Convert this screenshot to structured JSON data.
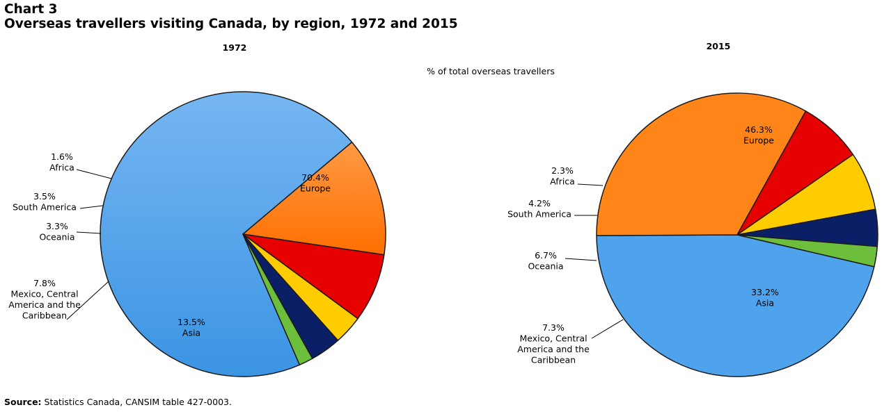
{
  "header": {
    "chart_number": "Chart 3",
    "title": "Overseas travellers visiting Canada, by region, 1972 and 2015"
  },
  "unit_label": "% of total overseas travellers",
  "source": {
    "label": "Source:",
    "text": "Statistics Canada, CANSIM table 427-0003."
  },
  "colors": {
    "Europe": "#4fa3ec",
    "Asia": "#ff8519",
    "Mexico, Central America and the Caribbean": "#e60000",
    "Oceania": "#ffcc00",
    "South America": "#0a1f66",
    "Africa": "#6dbe3c"
  },
  "chart_data": [
    {
      "type": "pie",
      "title": "1972",
      "slices": [
        {
          "label": "Europe",
          "value": 70.4,
          "value_label": "70.4%",
          "label_lines": [
            "Europe"
          ]
        },
        {
          "label": "Asia",
          "value": 13.5,
          "value_label": "13.5%",
          "label_lines": [
            "Asia"
          ]
        },
        {
          "label": "Mexico, Central America and the Caribbean",
          "value": 7.8,
          "value_label": "7.8%",
          "label_lines": [
            "Mexico, Central",
            "America and the",
            "Caribbean"
          ]
        },
        {
          "label": "Oceania",
          "value": 3.3,
          "value_label": "3.3%",
          "label_lines": [
            "Oceania"
          ]
        },
        {
          "label": "South America",
          "value": 3.5,
          "value_label": "3.5%",
          "label_lines": [
            "South America"
          ]
        },
        {
          "label": "Africa",
          "value": 1.6,
          "value_label": "1.6%",
          "label_lines": [
            "Africa"
          ]
        }
      ]
    },
    {
      "type": "pie",
      "title": "2015",
      "slices": [
        {
          "label": "Europe",
          "value": 46.3,
          "value_label": "46.3%",
          "label_lines": [
            "Europe"
          ]
        },
        {
          "label": "Asia",
          "value": 33.2,
          "value_label": "33.2%",
          "label_lines": [
            "Asia"
          ]
        },
        {
          "label": "Mexico, Central America and the Caribbean",
          "value": 7.3,
          "value_label": "7.3%",
          "label_lines": [
            "Mexico, Central",
            "America and the",
            "Caribbean"
          ]
        },
        {
          "label": "Oceania",
          "value": 6.7,
          "value_label": "6.7%",
          "label_lines": [
            "Oceania"
          ]
        },
        {
          "label": "South America",
          "value": 4.2,
          "value_label": "4.2%",
          "label_lines": [
            "South America"
          ]
        },
        {
          "label": "Africa",
          "value": 2.3,
          "value_label": "2.3%",
          "label_lines": [
            "Africa"
          ]
        }
      ]
    }
  ]
}
